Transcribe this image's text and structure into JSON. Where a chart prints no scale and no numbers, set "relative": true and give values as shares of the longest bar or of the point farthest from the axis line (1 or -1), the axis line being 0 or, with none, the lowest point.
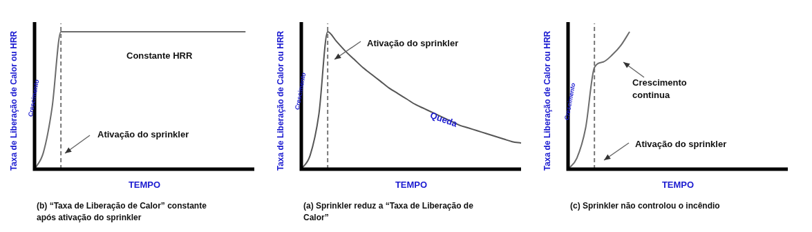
{
  "chart_data": [
    {
      "type": "line",
      "title": "(b) “Taxa de Liberação de Calor” constante após ativação do sprinkler",
      "xlabel": "TEMPO",
      "ylabel": "Taxa de Liberação de Calor ou HRR",
      "relative": true,
      "categories": [
        null,
        null,
        null,
        null,
        null,
        null,
        null,
        null,
        null,
        null,
        null,
        null,
        null,
        null,
        null,
        null,
        null,
        null,
        null,
        null,
        null,
        null,
        null,
        null,
        null,
        null
      ],
      "series": [
        {
          "color": "#6b6b6b",
          "values": [
            0,
            0.12,
            0.45,
            1,
            1,
            1,
            1,
            1,
            1,
            1,
            1,
            1,
            1,
            1,
            1,
            1,
            1,
            1,
            1,
            1,
            1,
            1,
            1,
            1,
            1,
            null
          ]
        }
      ],
      "annotations": [
        "Constante HRR",
        "Crescimento",
        "Ativação do sprinkler"
      ],
      "legend": false,
      "marker": "none",
      "line_style": "solid"
    },
    {
      "type": "line",
      "title": "(a) Sprinkler reduz a “Taxa de Liberação de Calor”",
      "xlabel": "TEMPO",
      "ylabel": "Taxa de Liberação de Calor ou HRR",
      "relative": true,
      "categories": [
        null,
        null,
        null,
        null,
        null,
        null,
        null,
        null,
        null,
        null,
        null,
        null,
        null,
        null,
        null,
        null,
        null,
        null,
        null,
        null,
        null,
        null,
        null,
        null,
        null,
        null
      ],
      "series": [
        {
          "color": "#555555",
          "values": [
            0,
            0.1,
            0.4,
            1,
            0.93,
            0.86,
            0.8,
            0.74,
            0.69,
            0.64,
            0.59,
            0.55,
            0.51,
            0.47,
            0.44,
            0.41,
            0.38,
            0.35,
            0.32,
            0.3,
            0.28,
            0.26,
            0.24,
            0.22,
            0.2,
            0.19
          ]
        }
      ],
      "annotations": [
        "Ativação do sprinkler",
        "Crescimento",
        "Queda"
      ],
      "legend": false,
      "marker": "none",
      "line_style": "solid"
    },
    {
      "type": "line",
      "title": "(c)  Sprinkler não controlou o incêndio",
      "xlabel": "TEMPO",
      "ylabel": "Taxa de Liberação de Calor ou HRR",
      "relative": true,
      "categories": [
        null,
        null,
        null,
        null,
        null,
        null,
        null,
        null,
        null,
        null,
        null,
        null,
        null,
        null,
        null,
        null,
        null,
        null,
        null,
        null,
        null,
        null,
        null,
        null,
        null,
        null
      ],
      "series": [
        {
          "color": "#6b6b6b",
          "values": [
            0,
            0.08,
            0.3,
            0.74,
            0.78,
            0.83,
            0.9,
            1,
            null,
            null,
            null,
            null,
            null,
            null,
            null,
            null,
            null,
            null,
            null,
            null,
            null,
            null,
            null,
            null,
            null,
            null
          ]
        }
      ],
      "annotations": [
        "Crescimento continua",
        "Crescimento",
        "Ativação do sprinkler"
      ],
      "legend": false,
      "marker": "none",
      "line_style": "solid"
    }
  ]
}
